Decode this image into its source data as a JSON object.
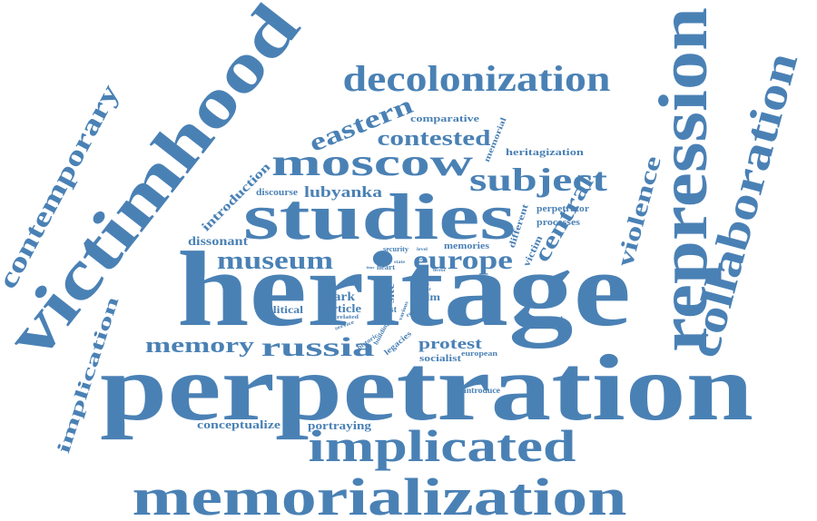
{
  "cloud": {
    "color": "#4A81B5",
    "words": [
      "perpetration",
      "heritage",
      "victimhood",
      "repression",
      "studies",
      "memorialization",
      "collaboration",
      "implicated",
      "decolonization",
      "moscow",
      "contemporary",
      "subject",
      "russia",
      "museum",
      "europe",
      "memory",
      "eastern",
      "contested",
      "violence",
      "central",
      "implication",
      "lubyanka",
      "protest",
      "introduction",
      "dissonant",
      "portraying",
      "conceptualize",
      "dark",
      "political",
      "article",
      "past",
      "film",
      "comparative",
      "heritagization",
      "memorial",
      "discourse",
      "perpetrator",
      "processes",
      "victim",
      "different",
      "memories",
      "site",
      "socialist",
      "historical",
      "introduce",
      "european",
      "legacies",
      "security",
      "heart",
      "related",
      "historic",
      "building",
      "service",
      "regime",
      "various",
      "actor",
      "work",
      "terror",
      "level",
      "state",
      "case",
      "way",
      "time"
    ]
  }
}
